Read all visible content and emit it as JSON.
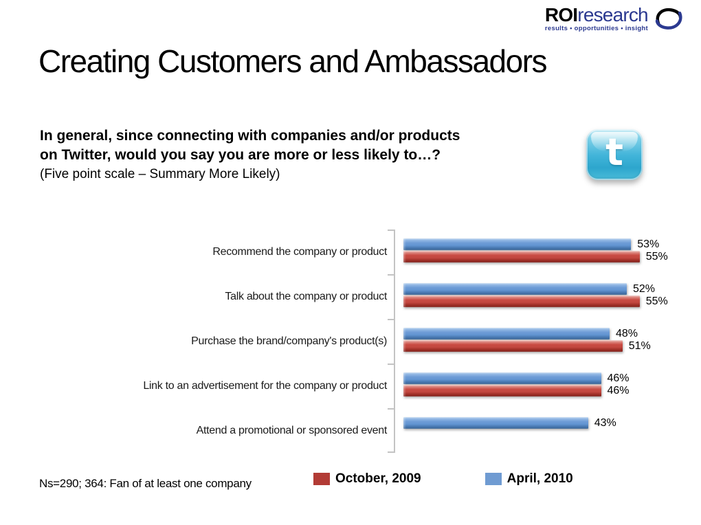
{
  "brand": {
    "name_bold": "ROI",
    "name_light": "research",
    "tagline": "results • opportunities • insight",
    "text_blue": "#2b3990"
  },
  "slide": {
    "title": "Creating Customers and Ambassadors",
    "question_line1": "In general, since connecting with companies and/or products",
    "question_line2": "on Twitter, would you say you are more or less likely to…?",
    "question_line3": "(Five point scale – Summary More Likely)",
    "footnote": "Ns=290; 364: Fan of at least one company"
  },
  "icons": {
    "twitter": {
      "letter": "t",
      "color": "#3db5da"
    }
  },
  "legend": [
    {
      "label": "October, 2009",
      "color": "#b23b35"
    },
    {
      "label": "April, 2010",
      "color": "#6f9bd2"
    }
  ],
  "chart_data": {
    "type": "bar",
    "orientation": "horizontal",
    "title": "",
    "xlabel": "",
    "ylabel": "",
    "categories": [
      "Recommend the company or product",
      "Talk about the company or product",
      "Purchase the brand/company's product(s)",
      "Link to an advertisement for the company or product",
      "Attend a promotional or sponsored event"
    ],
    "series": [
      {
        "name": "April, 2010",
        "color": "#6f9bd2",
        "position": "top",
        "values": [
          53,
          52,
          48,
          46,
          43
        ]
      },
      {
        "name": "October, 2009",
        "color": "#b23b35",
        "position": "bottom",
        "values": [
          55,
          55,
          51,
          46,
          null
        ]
      }
    ],
    "value_suffix": "%",
    "xlim": [
      0,
      60
    ],
    "grid": false,
    "data_labels": true,
    "legend_position": "bottom"
  }
}
